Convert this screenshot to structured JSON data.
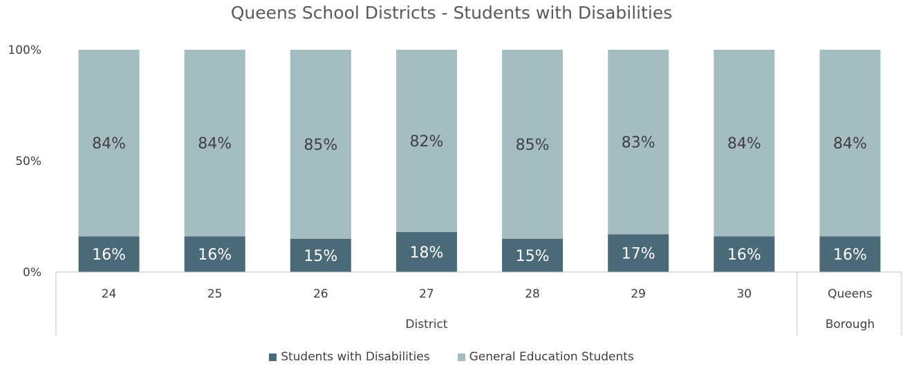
{
  "title": "Queens School Districts - Students with Disabilities",
  "colors": {
    "swd": "#4a6a78",
    "gen": "#a4bdc3",
    "label_dark": "#ffffff",
    "label_light": "#404040",
    "axis": "#bfbfbf"
  },
  "chart_data": {
    "type": "bar",
    "stacked": true,
    "percent": true,
    "categories": [
      "24",
      "25",
      "26",
      "27",
      "28",
      "29",
      "30",
      "Queens Borough"
    ],
    "category_groups": [
      {
        "label": "District",
        "categories": [
          "24",
          "25",
          "26",
          "27",
          "28",
          "29",
          "30"
        ]
      },
      {
        "label": "",
        "categories": [
          "Queens Borough"
        ]
      }
    ],
    "series": [
      {
        "name": "Students with Disabilities",
        "values": [
          16,
          16,
          15,
          18,
          15,
          17,
          16,
          16
        ],
        "labels": [
          "16%",
          "16%",
          "15%",
          "18%",
          "15%",
          "17%",
          "16%",
          "16%"
        ]
      },
      {
        "name": "General Education Students",
        "values": [
          84,
          84,
          85,
          82,
          85,
          83,
          84,
          84
        ],
        "labels": [
          "84%",
          "84%",
          "85%",
          "82%",
          "85%",
          "83%",
          "84%",
          "84%"
        ]
      }
    ],
    "yticks": [
      "0%",
      "50%",
      "100%"
    ],
    "ylim": [
      0,
      100
    ],
    "legend_position": "bottom",
    "grid": false
  }
}
